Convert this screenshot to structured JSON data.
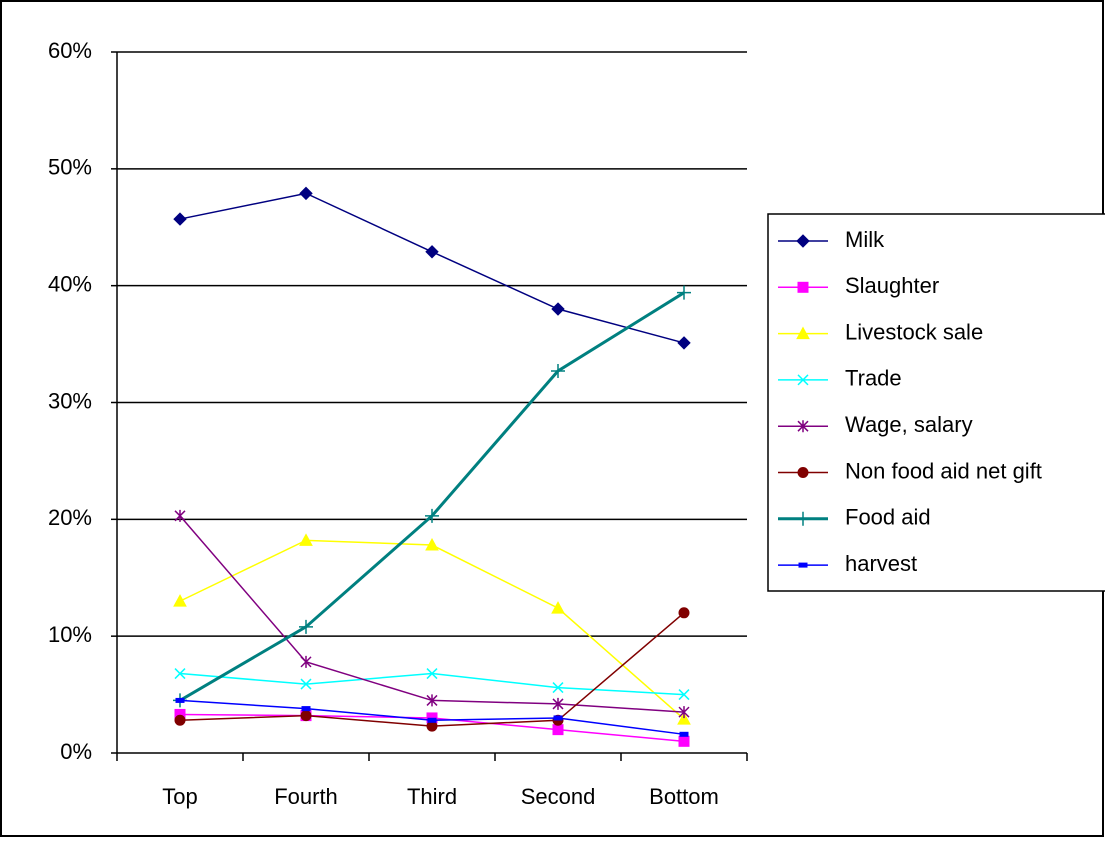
{
  "chart_data": {
    "type": "line",
    "categories": [
      "Top",
      "Fourth",
      "Third",
      "Second",
      "Bottom"
    ],
    "ylim": [
      0,
      60
    ],
    "yticks": [
      {
        "value": 0,
        "label": "0%"
      },
      {
        "value": 10,
        "label": "10%"
      },
      {
        "value": 20,
        "label": "20%"
      },
      {
        "value": 30,
        "label": "30%"
      },
      {
        "value": 40,
        "label": "40%"
      },
      {
        "value": 50,
        "label": "50%"
      },
      {
        "value": 60,
        "label": "60%"
      }
    ],
    "grid": true,
    "legend": "right",
    "series": [
      {
        "name": "Milk",
        "color": "#000080",
        "marker": "diamond",
        "values": [
          45.7,
          47.9,
          42.9,
          38.0,
          35.1
        ]
      },
      {
        "name": "Slaughter",
        "color": "#ff00ff",
        "marker": "square",
        "values": [
          3.3,
          3.2,
          3.0,
          2.0,
          1.0
        ]
      },
      {
        "name": "Livestock sale",
        "color": "#ffff00",
        "marker": "triangle",
        "values": [
          13.0,
          18.2,
          17.8,
          12.4,
          2.9
        ]
      },
      {
        "name": "Trade",
        "color": "#00ffff",
        "marker": "x",
        "values": [
          6.8,
          5.9,
          6.8,
          5.6,
          5.0
        ]
      },
      {
        "name": "Wage, salary",
        "color": "#800080",
        "marker": "asterisk",
        "values": [
          20.3,
          7.8,
          4.5,
          4.2,
          3.5
        ]
      },
      {
        "name": "Non food aid net gift",
        "color": "#800000",
        "marker": "circle",
        "values": [
          2.8,
          3.2,
          2.3,
          2.8,
          12.0
        ]
      },
      {
        "name": "Food aid",
        "color": "#008080",
        "marker": "plus",
        "values": [
          4.5,
          10.8,
          20.3,
          32.7,
          39.4
        ]
      },
      {
        "name": "harvest",
        "color": "#0000ff",
        "marker": "dash",
        "values": [
          4.5,
          3.8,
          2.8,
          3.0,
          1.6
        ]
      }
    ]
  }
}
